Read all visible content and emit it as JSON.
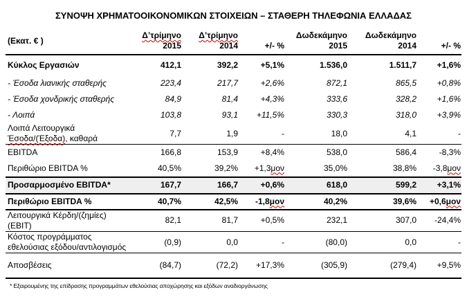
{
  "title": "ΣΥΝΟΨΗ ΧΡΗΜΑΤΟΟΙΚΟΝΟΜΙΚΩΝ ΣΤΟΙΧΕΙΩΝ – ΣΤΑΘΕΡΗ ΤΗΛΕΦΩΝΙΑ ΕΛΛΑΔΑΣ",
  "theme": {
    "background_color": "#ffffff",
    "text_color": "#000000",
    "shaded_row_color": "#efefef",
    "spellcheck_underline_color": "#d40000",
    "rule_color": "#000000"
  },
  "header": {
    "unit_label": "(Εκατ. € )",
    "columns": [
      {
        "line1": "Δ’τρίμηνο",
        "line2": "2015",
        "spellcheck_wavy": true
      },
      {
        "line1": "Δ’τρίμηνο",
        "line2": "2014",
        "spellcheck_wavy": true
      },
      {
        "line1": "",
        "line2": "+/- %",
        "spellcheck_wavy": false
      },
      {
        "line1": "Δωδεκάμηνο",
        "line2": "2015",
        "spellcheck_wavy": false
      },
      {
        "line1": "Δωδεκάμηνο",
        "line2": "2014",
        "spellcheck_wavy": false
      },
      {
        "line1": "",
        "line2": "+/- %",
        "spellcheck_wavy": false
      }
    ]
  },
  "table": {
    "wavy_fragments": [
      "μον",
      "Έσοδα/(Έξοδα)"
    ],
    "rows": [
      {
        "label_lines": [
          "Κύκλος Εργασιών"
        ],
        "style": "bold",
        "shaded": false,
        "rule_below": null,
        "cells": [
          "412,1",
          "392,2",
          "+5,1%",
          "1.536,0",
          "1.511,7",
          "+1,6%"
        ]
      },
      {
        "label_lines": [
          "- Έσοδα λιανικής σταθερής"
        ],
        "style": "italic",
        "shaded": false,
        "rule_below": null,
        "cells": [
          "223,4",
          "217,7",
          "+2,6%",
          "872,1",
          "865,5",
          "+0,8%"
        ]
      },
      {
        "label_lines": [
          "- Έσοδα χονδρικής σταθερής"
        ],
        "style": "italic",
        "shaded": false,
        "rule_below": null,
        "cells": [
          "84,9",
          "81,4",
          "+4,3%",
          "333,6",
          "328,2",
          "+1,6%"
        ]
      },
      {
        "label_lines": [
          "- Λοιπά"
        ],
        "style": "italic",
        "shaded": false,
        "rule_below": null,
        "cells": [
          "103,8",
          "93,1",
          "+11,5%",
          "330,3",
          "318,0",
          "+3,9%"
        ]
      },
      {
        "label_lines": [
          "Λοιπά Λειτουργικά",
          "Έσοδα/(Έξοδα), καθαρά"
        ],
        "style": null,
        "shaded": false,
        "rule_below": "thin",
        "cells": [
          "7,7",
          "1,9",
          "-",
          "18,0",
          "4,1",
          "-"
        ]
      },
      {
        "label_lines": [
          "EBITDA"
        ],
        "style": null,
        "shaded": false,
        "rule_below": null,
        "cells": [
          "166,8",
          "153,9",
          "+8,4%",
          "538,0",
          "586,4",
          "-8,3%"
        ]
      },
      {
        "label_lines": [
          "Περιθώριο EBITDA %"
        ],
        "style": null,
        "shaded": false,
        "rule_below": "thick",
        "cells": [
          "40,5%",
          "39,2%",
          "+1,3μον",
          "35,0%",
          "38,8%",
          "-3,8μον"
        ]
      },
      {
        "label_lines": [
          "Προσαρμοσμένο EBITDA*"
        ],
        "style": "bold",
        "shaded": true,
        "rule_below": "thick",
        "cells": [
          "167,7",
          "166,7",
          "+0,6%",
          "618,0",
          "599,2",
          "+3,1%"
        ]
      },
      {
        "label_lines": [
          "Περιθώριο EBITDA %"
        ],
        "style": "bold",
        "shaded": false,
        "rule_below": "thick",
        "cells": [
          "40,7%",
          "42,5%",
          "-1,8μον",
          "40,2%",
          "39,6%",
          "+0,6μον"
        ]
      },
      {
        "label_lines": [
          "Λειτουργικά Κέρδη/(ζημίες)",
          "(EBIT)"
        ],
        "style": null,
        "shaded": false,
        "rule_below": "thin",
        "cells": [
          "82,1",
          "81,7",
          "+0,5%",
          "232,1",
          "307,0",
          "-24,4%"
        ]
      },
      {
        "label_lines": [
          "Κόστος προγράμματος",
          "εθελούσιας εξόδου/αντιλογισμός"
        ],
        "style": null,
        "shaded": false,
        "rule_below": "thin",
        "cells": [
          "(0,9)",
          "0,0",
          "-",
          "(80,0)",
          "0,0",
          "-"
        ]
      },
      {
        "label_lines": [
          "Αποσβέσεις"
        ],
        "style": null,
        "shaded": false,
        "rule_below": "thick",
        "cells": [
          "(84,7)",
          "(72,2)",
          "+17,3%",
          "(305,9)",
          "(279,4)",
          "+9,5%"
        ]
      }
    ]
  },
  "footnote": "* Εξαιρουμένης της επίδρασης προγραμμάτων εθελούσιας αποχώρησης και εξόδων αναδιοργάνωσης"
}
